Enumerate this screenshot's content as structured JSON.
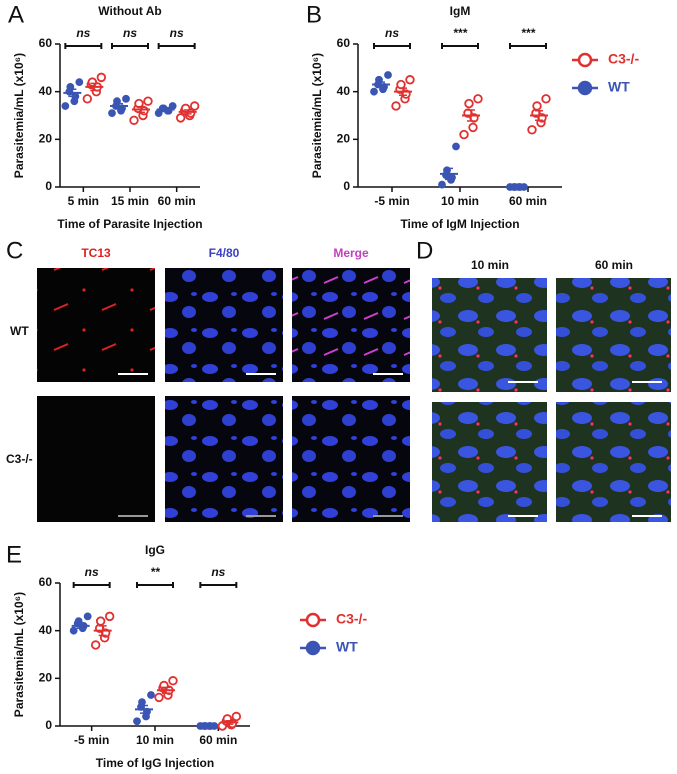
{
  "chart_data": [
    {
      "type": "dot",
      "panel": "A",
      "title": "Without Ab",
      "xlabel": "Time of Parasite Injection",
      "ylabel": "Parasitemia/mL (x10⁶)",
      "categories": [
        "5 min",
        "15 min",
        "60 min"
      ],
      "annotations": [
        "ns",
        "ns",
        "ns"
      ],
      "ylim": [
        0,
        60
      ],
      "yticks": [
        0,
        20,
        40,
        60
      ],
      "legend": false,
      "series": [
        {
          "color": "#3a55b4",
          "marker": "filled",
          "values": [
            39.5,
            34,
            32.5
          ],
          "errors": [
            1.5,
            1,
            0.6
          ],
          "points": [
            [
              34,
              36,
              38,
              40,
              42,
              44
            ],
            [
              31,
              32,
              33,
              34,
              36,
              37
            ],
            [
              31,
              32,
              32,
              33,
              33,
              34
            ]
          ]
        },
        {
          "color": "#e03030",
          "marker": "open",
          "values": [
            42,
            32.5,
            31.5
          ],
          "errors": [
            1.5,
            1.2,
            0.8
          ],
          "points": [
            [
              37,
              40,
              42,
              43,
              44,
              46
            ],
            [
              28,
              30,
              32,
              33,
              35,
              36
            ],
            [
              29,
              30,
              31,
              32,
              33,
              34
            ]
          ]
        }
      ]
    },
    {
      "type": "dot",
      "panel": "B",
      "title": "IgM",
      "xlabel": "Time of IgM Injection",
      "ylabel": "Parasitemia/mL (x10⁶)",
      "categories": [
        "-5 min",
        "10 min",
        "60 min"
      ],
      "annotations": [
        "ns",
        "***",
        "***"
      ],
      "ylim": [
        0,
        60
      ],
      "yticks": [
        0,
        20,
        40,
        60
      ],
      "legend": true,
      "series": [
        {
          "name": "WT",
          "color": "#3a55b4",
          "marker": "filled",
          "values": [
            43,
            5.5,
            0
          ],
          "errors": [
            1,
            2.3,
            0
          ],
          "points": [
            [
              40,
              41,
              42,
              43,
              45,
              47
            ],
            [
              1,
              3,
              4,
              5,
              7,
              17
            ],
            [
              0,
              0,
              0,
              0,
              0,
              0
            ]
          ]
        },
        {
          "name": "C3-/-",
          "color": "#e03030",
          "marker": "open",
          "values": [
            40,
            30,
            30
          ],
          "errors": [
            1.5,
            2.3,
            2
          ],
          "points": [
            [
              34,
              37,
              39,
              41,
              43,
              45
            ],
            [
              22,
              25,
              29,
              31,
              35,
              37
            ],
            [
              24,
              27,
              29,
              31,
              34,
              37
            ]
          ]
        }
      ]
    },
    {
      "type": "dot",
      "panel": "E",
      "title": "IgG",
      "xlabel": "Time of IgG Injection",
      "ylabel": "Parasitemia/mL (x10⁶)",
      "categories": [
        "-5 min",
        "10 min",
        "60 min"
      ],
      "annotations": [
        "ns",
        "**",
        "ns"
      ],
      "ylim": [
        0,
        60
      ],
      "yticks": [
        0,
        20,
        40,
        60
      ],
      "legend": true,
      "series": [
        {
          "name": "WT",
          "color": "#3a55b4",
          "marker": "filled",
          "values": [
            42,
            7,
            0
          ],
          "errors": [
            1,
            1.6,
            0
          ],
          "points": [
            [
              40,
              41,
              42,
              43,
              44,
              46
            ],
            [
              2,
              4,
              6,
              8,
              10,
              13
            ],
            [
              0,
              0,
              0,
              0,
              0,
              0
            ]
          ]
        },
        {
          "name": "C3-/-",
          "color": "#e03030",
          "marker": "open",
          "values": [
            40,
            15,
            1.5
          ],
          "errors": [
            2,
            1.2,
            0.7
          ],
          "points": [
            [
              34,
              37,
              39,
              41,
              44,
              46
            ],
            [
              12,
              13,
              15,
              16,
              17,
              19
            ],
            [
              0,
              0.5,
              1,
              2,
              3,
              4
            ]
          ]
        }
      ]
    }
  ],
  "panel_c": {
    "label": "C",
    "columns": [
      "TC13",
      "F4/80",
      "Merge"
    ],
    "rows": [
      "WT",
      "C3-/-"
    ]
  },
  "panel_d": {
    "label": "D",
    "columns": [
      "10 min",
      "60 min"
    ]
  }
}
